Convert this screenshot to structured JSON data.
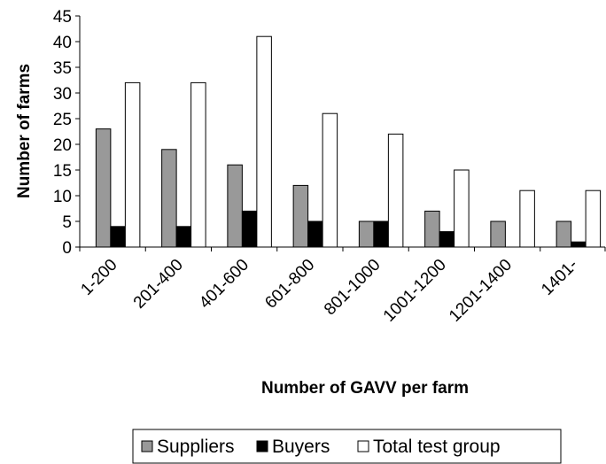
{
  "chart_data": {
    "type": "bar",
    "xlabel": "Number of GAVV per farm",
    "ylabel": "Number of farms",
    "categories": [
      "1-200",
      "201-400",
      "401-600",
      "601-800",
      "801-1000",
      "1001-1200",
      "1201-1400",
      "1401-"
    ],
    "series": [
      {
        "name": "Suppliers",
        "color": "#999999",
        "values": [
          23,
          19,
          16,
          12,
          5,
          7,
          5,
          5
        ]
      },
      {
        "name": "Buyers",
        "color": "#000000",
        "values": [
          4,
          4,
          7,
          5,
          5,
          3,
          0,
          1
        ]
      },
      {
        "name": "Total test group",
        "color": "#ffffff",
        "values": [
          32,
          32,
          41,
          26,
          22,
          15,
          11,
          11
        ]
      }
    ],
    "ylim": [
      0,
      45
    ],
    "yticks": [
      0,
      5,
      10,
      15,
      20,
      25,
      30,
      35,
      40,
      45
    ],
    "legend": "bottom"
  }
}
